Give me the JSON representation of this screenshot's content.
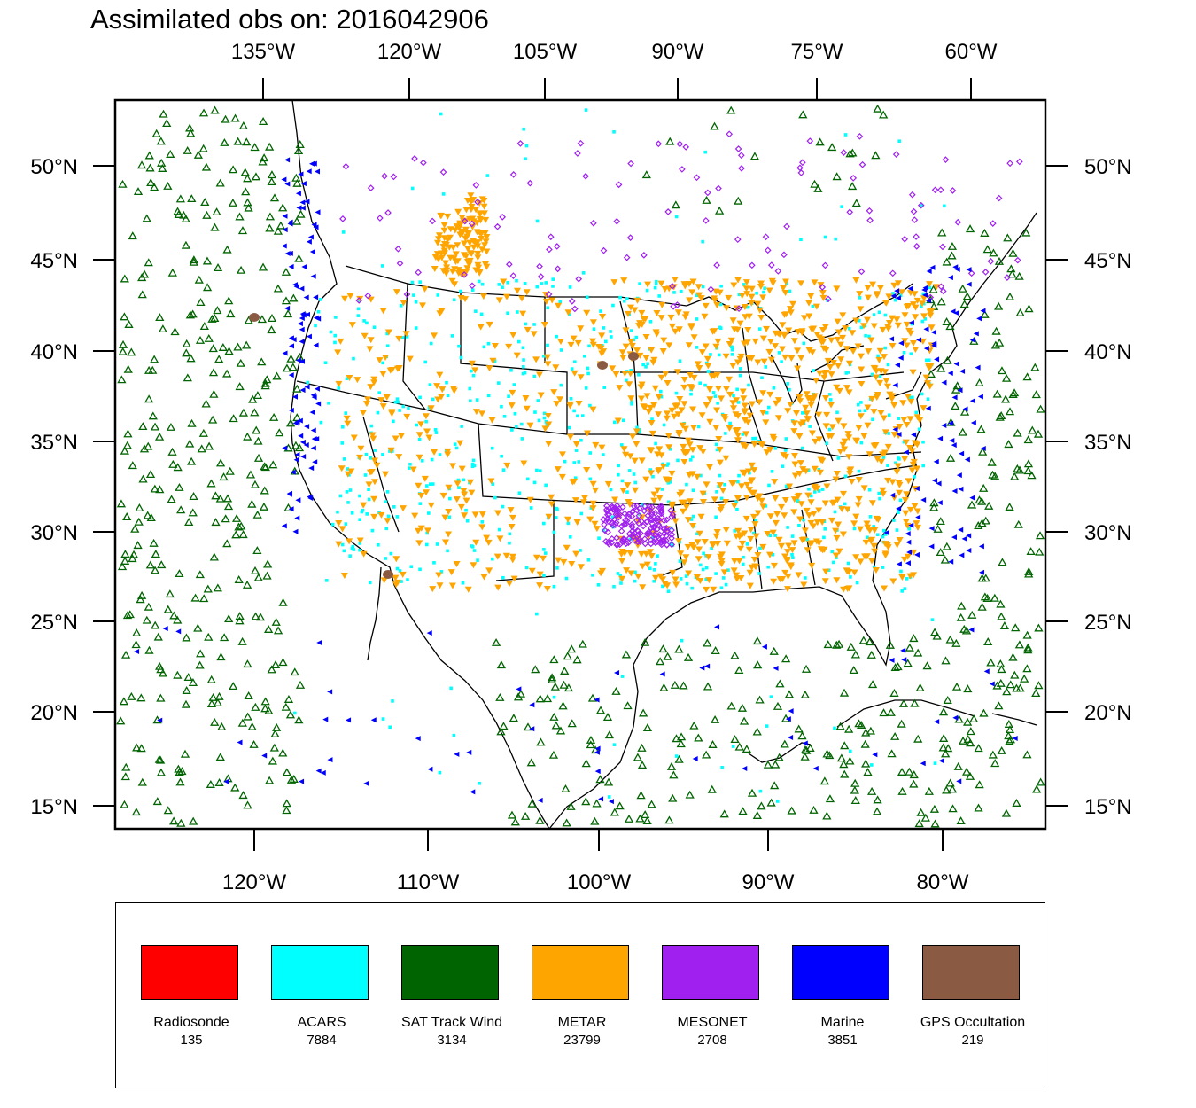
{
  "title": "Assimilated obs on: 2016042906",
  "map": {
    "top_lon_labels": [
      "135°W",
      "120°W",
      "105°W",
      "90°W",
      "75°W",
      "60°W"
    ],
    "bottom_lon_labels": [
      "120°W",
      "110°W",
      "100°W",
      "90°W",
      "80°W"
    ],
    "lat_labels": [
      "50°N",
      "45°N",
      "40°N",
      "35°N",
      "30°N",
      "25°N",
      "20°N",
      "15°N"
    ],
    "colors": {
      "frame": "#000000",
      "coastline": "#000000",
      "water": "#ffffff"
    }
  },
  "legend": {
    "items": [
      {
        "name": "Radiosonde",
        "count": "135",
        "color": "#ff0000",
        "marker": "square"
      },
      {
        "name": "ACARS",
        "count": "7884",
        "color": "#00ffff",
        "marker": "square"
      },
      {
        "name": "SAT Track Wind",
        "count": "3134",
        "color": "#006400",
        "marker": "triangle-up-open"
      },
      {
        "name": "METAR",
        "count": "23799",
        "color": "#ffa500",
        "marker": "triangle-down"
      },
      {
        "name": "MESONET",
        "count": "2708",
        "color": "#a020f0",
        "marker": "diamond"
      },
      {
        "name": "Marine",
        "count": "3851",
        "color": "#0000ff",
        "marker": "triangle-left"
      },
      {
        "name": "GPS Occultation",
        "count": "219",
        "color": "#8b5a42",
        "marker": "dot"
      }
    ]
  }
}
